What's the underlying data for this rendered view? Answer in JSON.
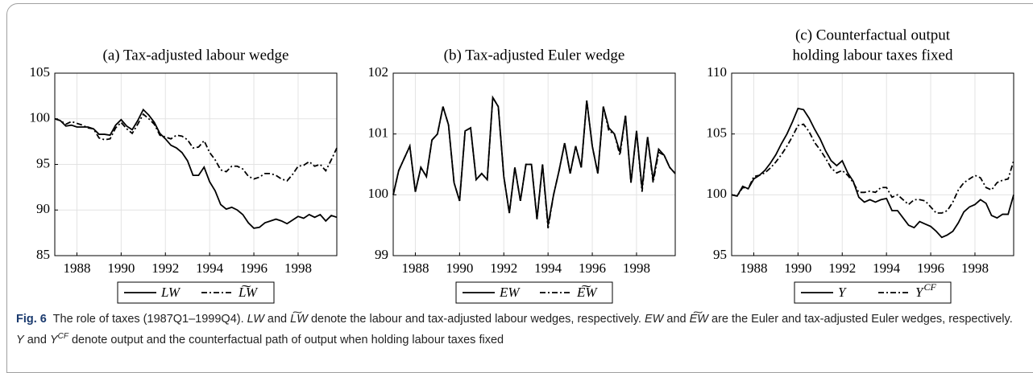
{
  "chart_data": [
    {
      "type": "line",
      "title": "(a) Tax-adjusted labour wedge",
      "x": [
        1987,
        1987.25,
        1987.5,
        1987.75,
        1988,
        1988.25,
        1988.5,
        1988.75,
        1989,
        1989.25,
        1989.5,
        1989.75,
        1990,
        1990.25,
        1990.5,
        1990.75,
        1991,
        1991.25,
        1991.5,
        1991.75,
        1992,
        1992.25,
        1992.5,
        1992.75,
        1993,
        1993.25,
        1993.5,
        1993.75,
        1994,
        1994.25,
        1994.5,
        1994.75,
        1995,
        1995.25,
        1995.5,
        1995.75,
        1996,
        1996.25,
        1996.5,
        1996.75,
        1997,
        1997.25,
        1997.5,
        1997.75,
        1998,
        1998.25,
        1998.5,
        1998.75,
        1999,
        1999.25,
        1999.5,
        1999.75
      ],
      "series": [
        {
          "name": "LW",
          "color": "#000000",
          "linestyle": "solid",
          "values": [
            100,
            99.8,
            99.2,
            99.3,
            99.1,
            99.1,
            99.1,
            98.9,
            98.3,
            98.3,
            98.2,
            99.3,
            99.9,
            99.2,
            98.8,
            99.8,
            101,
            100.4,
            99.6,
            98.4,
            97.8,
            97.1,
            96.8,
            96.3,
            95.4,
            93.8,
            93.8,
            94.7,
            93.1,
            92.1,
            90.6,
            90.1,
            90.3,
            90,
            89.5,
            88.6,
            88,
            88.1,
            88.6,
            88.8,
            89,
            88.8,
            88.5,
            88.9,
            89.3,
            89.1,
            89.5,
            89.2,
            89.5,
            88.8,
            89.4,
            89.2
          ]
        },
        {
          "name": "L͠W",
          "color": "#000000",
          "linestyle": "dashdot",
          "values": [
            100,
            99.8,
            99.4,
            99.7,
            99.5,
            99.3,
            99,
            98.9,
            97.9,
            97.7,
            97.8,
            99,
            99.6,
            98.9,
            98.4,
            99.4,
            100.5,
            100,
            99.4,
            98.2,
            98,
            97.8,
            98.2,
            98.1,
            97.7,
            96.8,
            96.9,
            97.6,
            96.3,
            95.5,
            94.4,
            94.2,
            94.8,
            94.8,
            94.5,
            93.7,
            93.4,
            93.6,
            94,
            94,
            93.8,
            93.4,
            93.2,
            93.9,
            94.8,
            94.9,
            95.3,
            94.8,
            95,
            94.3,
            95.5,
            96.8
          ]
        }
      ],
      "xlim": [
        1987,
        1999.75
      ],
      "xticks": [
        1988,
        1990,
        1992,
        1994,
        1996,
        1998
      ],
      "ylim": [
        85,
        105
      ],
      "yticks": [
        85,
        90,
        95,
        100,
        105
      ],
      "grid": true,
      "legend": "below"
    },
    {
      "type": "line",
      "title": "(b) Tax-adjusted Euler wedge",
      "x": [
        1987,
        1987.25,
        1987.5,
        1987.75,
        1988,
        1988.25,
        1988.5,
        1988.75,
        1989,
        1989.25,
        1989.5,
        1989.75,
        1990,
        1990.25,
        1990.5,
        1990.75,
        1991,
        1991.25,
        1991.5,
        1991.75,
        1992,
        1992.25,
        1992.5,
        1992.75,
        1993,
        1993.25,
        1993.5,
        1993.75,
        1994,
        1994.25,
        1994.5,
        1994.75,
        1995,
        1995.25,
        1995.5,
        1995.75,
        1996,
        1996.25,
        1996.5,
        1996.75,
        1997,
        1997.25,
        1997.5,
        1997.75,
        1998,
        1998.25,
        1998.5,
        1998.75,
        1999,
        1999.25,
        1999.5,
        1999.75
      ],
      "series": [
        {
          "name": "EW",
          "color": "#000000",
          "linestyle": "solid",
          "values": [
            100,
            100.4,
            100.6,
            100.8,
            100.05,
            100.45,
            100.3,
            100.9,
            101,
            101.45,
            101.15,
            100.2,
            99.9,
            101.05,
            101.1,
            100.25,
            100.35,
            100.25,
            101.6,
            101.45,
            100.3,
            99.7,
            100.45,
            99.9,
            100.5,
            100.5,
            99.6,
            100.5,
            99.5,
            100,
            100.4,
            100.85,
            100.35,
            100.8,
            100.45,
            101.55,
            100.8,
            100.35,
            101.45,
            101.1,
            101,
            100.7,
            101.3,
            100.2,
            101.05,
            100.1,
            100.95,
            100.25,
            100.75,
            100.65,
            100.45,
            100.35
          ]
        },
        {
          "name": "E͠W",
          "color": "#000000",
          "linestyle": "dashdot",
          "values": [
            100,
            100.4,
            100.6,
            100.8,
            100.05,
            100.45,
            100.3,
            100.9,
            101,
            101.45,
            101.15,
            100.2,
            99.9,
            101.05,
            101.1,
            100.25,
            100.35,
            100.25,
            101.6,
            101.45,
            100.3,
            99.7,
            100.45,
            99.9,
            100.5,
            100.5,
            99.6,
            100.5,
            99.45,
            100,
            100.4,
            100.85,
            100.35,
            100.8,
            100.45,
            101.55,
            100.8,
            100.35,
            101.45,
            101.05,
            101,
            100.65,
            101.3,
            100.2,
            101.05,
            100.05,
            100.95,
            100.2,
            100.7,
            100.65,
            100.45,
            100.35
          ]
        }
      ],
      "xlim": [
        1987,
        1999.75
      ],
      "xticks": [
        1988,
        1990,
        1992,
        1994,
        1996,
        1998
      ],
      "ylim": [
        99,
        102
      ],
      "yticks": [
        99,
        100,
        101,
        102
      ],
      "grid": true,
      "legend": "below"
    },
    {
      "type": "line",
      "title": [
        "(c) Counterfactual output",
        "holding labour taxes fixed"
      ],
      "x": [
        1987,
        1987.25,
        1987.5,
        1987.75,
        1988,
        1988.25,
        1988.5,
        1988.75,
        1989,
        1989.25,
        1989.5,
        1989.75,
        1990,
        1990.25,
        1990.5,
        1990.75,
        1991,
        1991.25,
        1991.5,
        1991.75,
        1992,
        1992.25,
        1992.5,
        1992.75,
        1993,
        1993.25,
        1993.5,
        1993.75,
        1994,
        1994.25,
        1994.5,
        1994.75,
        1995,
        1995.25,
        1995.5,
        1995.75,
        1996,
        1996.25,
        1996.5,
        1996.75,
        1997,
        1997.25,
        1997.5,
        1997.75,
        1998,
        1998.25,
        1998.5,
        1998.75,
        1999,
        1999.25,
        1999.5,
        1999.75
      ],
      "series": [
        {
          "name": "Y",
          "color": "#000000",
          "linestyle": "solid",
          "values": [
            100,
            99.9,
            100.7,
            100.5,
            101.3,
            101.6,
            102,
            102.6,
            103.3,
            104.2,
            105,
            106,
            107.1,
            107,
            106.3,
            105.4,
            104.6,
            103.6,
            102.8,
            102.4,
            102.8,
            101.8,
            101.1,
            99.8,
            99.4,
            99.6,
            99.4,
            99.6,
            99.7,
            98.7,
            98.7,
            98.1,
            97.5,
            97.3,
            97.8,
            97.6,
            97.4,
            97,
            96.5,
            96.7,
            97,
            97.7,
            98.6,
            99,
            99.2,
            99.6,
            99.3,
            98.3,
            98.1,
            98.4,
            98.4,
            100
          ]
        },
        {
          "name": "Y",
          "superscript": "CF",
          "color": "#000000",
          "linestyle": "dashdot",
          "values": [
            100,
            99.9,
            100.6,
            100.5,
            101.5,
            101.6,
            101.8,
            102.2,
            102.7,
            103.3,
            104,
            104.8,
            105.7,
            105.8,
            105.2,
            104.3,
            103.7,
            103,
            102.2,
            101.8,
            102,
            101.6,
            101,
            100.2,
            100.2,
            100.3,
            100.2,
            100.6,
            100.6,
            99.8,
            100,
            99.6,
            99.2,
            99.6,
            99.6,
            99.5,
            99,
            98.5,
            98.5,
            98.7,
            99.4,
            100.4,
            101,
            101.3,
            101.6,
            101.4,
            100.6,
            100.4,
            101,
            101.2,
            101.3,
            102.8
          ]
        }
      ],
      "xlim": [
        1987,
        1999.75
      ],
      "xticks": [
        1988,
        1990,
        1992,
        1994,
        1996,
        1998
      ],
      "ylim": [
        95,
        110
      ],
      "yticks": [
        95,
        100,
        105,
        110
      ],
      "grid": true,
      "legend": "below"
    }
  ],
  "caption": {
    "label": "Fig. 6",
    "parts": [
      "The role of taxes (1987Q1–1999Q4).",
      "LW",
      "and",
      "L͠W",
      "denote the labour and tax-adjusted labour wedges, respectively.",
      "EW",
      "and",
      "E͠W",
      "are the Euler and tax-adjusted Euler wedges, respectively.",
      "Y",
      "and",
      "Y",
      "CF",
      "denote output and the counterfactual path of output when holding labour taxes fixed"
    ]
  }
}
